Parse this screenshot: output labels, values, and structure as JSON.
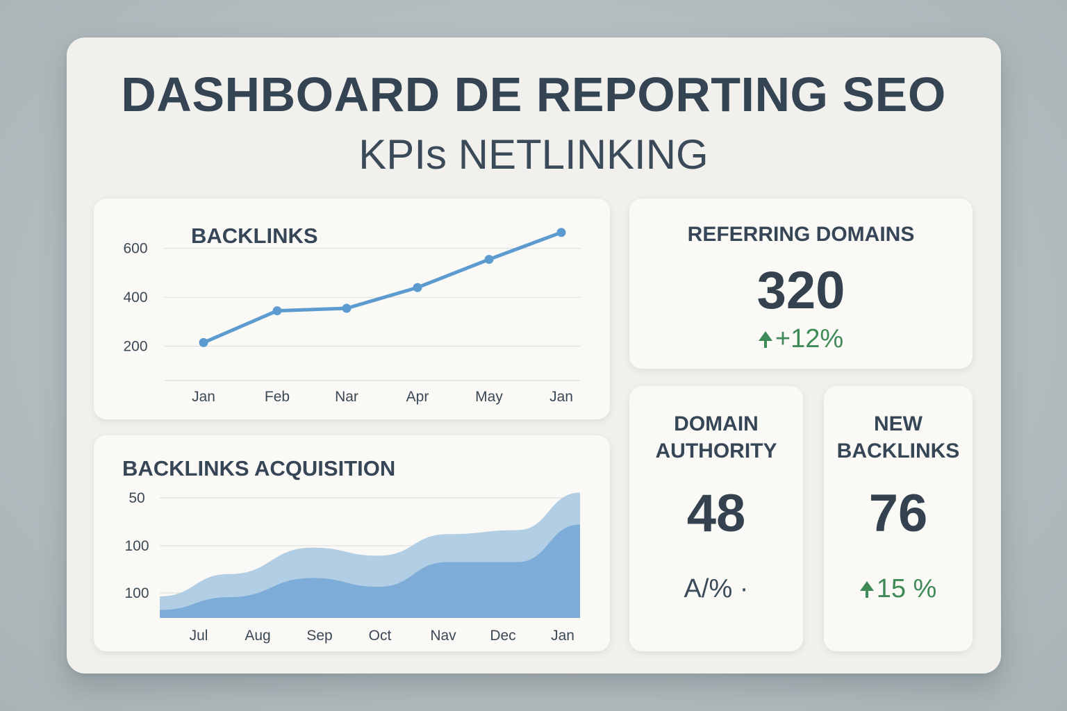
{
  "header": {
    "title": "DASHBOARD DE REPORTING SEO",
    "subtitle": "KPIs NETLINKING"
  },
  "colors": {
    "line": "#5b9bcf",
    "area_back": "#aecbe3",
    "area_front": "#75a9d5",
    "positive": "#3e8a57",
    "text": "#354555"
  },
  "kpis": {
    "referring_domains": {
      "label": "REFERRING DOMAINS",
      "value": "320",
      "delta": "+12%",
      "trend": "up"
    },
    "domain_authority": {
      "label_line1": "DOMAIN",
      "label_line2": "AUTHORITY",
      "value": "48",
      "delta": "A/% ·"
    },
    "new_backlinks": {
      "label_line1": "NEW",
      "label_line2": "BACKLINKS",
      "value": "76",
      "delta": "15 %",
      "trend": "up"
    }
  },
  "chart_data": [
    {
      "type": "line",
      "title": "BACKLINKS",
      "categories": [
        "Jan",
        "Feb",
        "Nar",
        "Apr",
        "May",
        "Jan"
      ],
      "y_ticks": [
        "200",
        "400",
        "600"
      ],
      "ylim": [
        60,
        690
      ],
      "series": [
        {
          "values": [
            215,
            345,
            355,
            440,
            555,
            665
          ]
        }
      ],
      "grid": true
    },
    {
      "type": "area",
      "title": "BACKLINKS ACQUISITION",
      "categories": [
        "Jul",
        "Aug",
        "Sep",
        "Oct",
        "Nav",
        "Dec",
        "Jan"
      ],
      "y_ticks": [
        "50",
        "100",
        "100"
      ],
      "series": [
        {
          "values": [
            27,
            55,
            88,
            78,
            105,
            110,
            157
          ]
        },
        {
          "values": [
            10,
            26,
            50,
            39,
            70,
            70,
            117
          ]
        }
      ],
      "grid": true
    }
  ]
}
